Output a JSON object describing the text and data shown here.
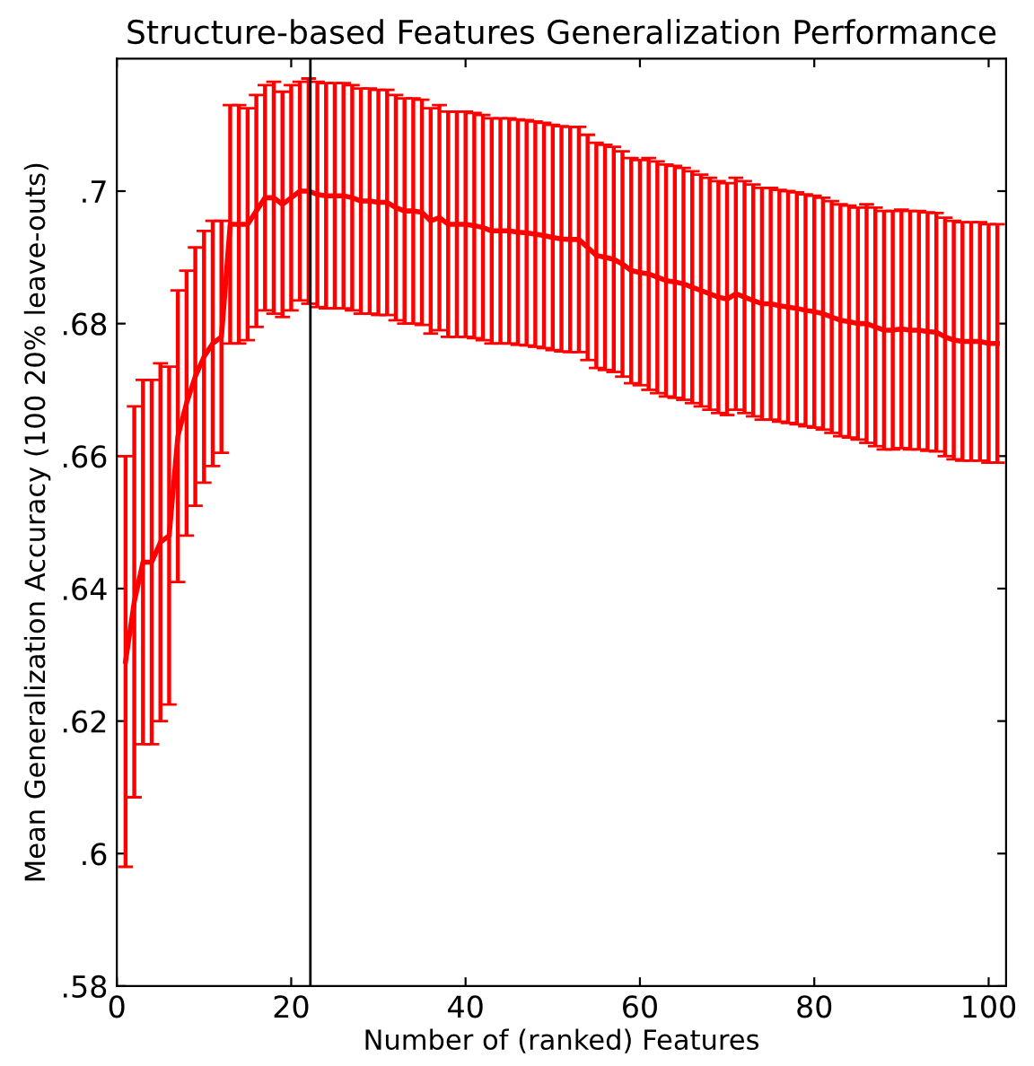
{
  "chart_data": {
    "type": "line",
    "title": "Structure-based Features Generalization Performance",
    "xlabel": "Number of (ranked) Features",
    "ylabel": "Mean Generalization Accuracy (100 20% leave-outs)",
    "xlim": [
      0,
      102
    ],
    "ylim": [
      0.58,
      0.72
    ],
    "xticks": [
      0,
      20,
      40,
      60,
      80,
      100
    ],
    "yticks": [
      {
        "value": 0.58,
        "label": ".58"
      },
      {
        "value": 0.6,
        "label": ".6"
      },
      {
        "value": 0.62,
        "label": ".62"
      },
      {
        "value": 0.64,
        "label": ".64"
      },
      {
        "value": 0.66,
        "label": ".66"
      },
      {
        "value": 0.68,
        "label": ".68"
      },
      {
        "value": 0.7,
        "label": ".7"
      }
    ],
    "grid": false,
    "marker": "none",
    "line_style": "solid",
    "ref_lines": [
      {
        "axis": "x",
        "value": 22.2,
        "label": null,
        "color": "#000000"
      }
    ],
    "series": [
      {
        "color": "#ff0000",
        "x": [
          1,
          2,
          3,
          4,
          5,
          6,
          7,
          8,
          9,
          10,
          11,
          12,
          13,
          14,
          15,
          16,
          17,
          18,
          19,
          20,
          21,
          22,
          23,
          24,
          25,
          26,
          27,
          28,
          29,
          30,
          31,
          32,
          33,
          34,
          35,
          36,
          37,
          38,
          39,
          40,
          41,
          42,
          43,
          44,
          45,
          46,
          47,
          48,
          49,
          50,
          51,
          52,
          53,
          54,
          55,
          56,
          57,
          58,
          59,
          60,
          61,
          62,
          63,
          64,
          65,
          66,
          67,
          68,
          69,
          70,
          71,
          72,
          73,
          74,
          75,
          76,
          77,
          78,
          79,
          80,
          81,
          82,
          83,
          84,
          85,
          86,
          87,
          88,
          89,
          90,
          91,
          92,
          93,
          94,
          95,
          96,
          97,
          98,
          99,
          100,
          101
        ],
        "values": [
          0.629,
          0.638,
          0.644,
          0.644,
          0.647,
          0.648,
          0.663,
          0.668,
          0.672,
          0.675,
          0.677,
          0.678,
          0.695,
          0.695,
          0.695,
          0.697,
          0.699,
          0.699,
          0.698,
          0.699,
          0.7,
          0.7,
          0.6995,
          0.6993,
          0.6993,
          0.6993,
          0.699,
          0.6985,
          0.6985,
          0.6983,
          0.6983,
          0.6975,
          0.697,
          0.697,
          0.6968,
          0.6955,
          0.696,
          0.695,
          0.695,
          0.695,
          0.6948,
          0.6945,
          0.694,
          0.694,
          0.694,
          0.6938,
          0.6937,
          0.6935,
          0.6933,
          0.693,
          0.6928,
          0.6927,
          0.6927,
          0.6915,
          0.6903,
          0.69,
          0.6897,
          0.689,
          0.688,
          0.6877,
          0.6875,
          0.687,
          0.6865,
          0.6863,
          0.686,
          0.6855,
          0.685,
          0.6845,
          0.684,
          0.6837,
          0.6845,
          0.684,
          0.6835,
          0.683,
          0.683,
          0.6827,
          0.6825,
          0.6823,
          0.682,
          0.6818,
          0.6815,
          0.681,
          0.6805,
          0.6803,
          0.68,
          0.68,
          0.6795,
          0.679,
          0.679,
          0.6792,
          0.679,
          0.679,
          0.6788,
          0.6787,
          0.678,
          0.6775,
          0.6773,
          0.6773,
          0.6773,
          0.677,
          0.677
        ],
        "errors": [
          0.031,
          0.0295,
          0.0275,
          0.0275,
          0.027,
          0.0255,
          0.022,
          0.02,
          0.0195,
          0.019,
          0.0185,
          0.0175,
          0.018,
          0.018,
          0.0175,
          0.0175,
          0.017,
          0.0175,
          0.017,
          0.017,
          0.0165,
          0.017,
          0.017,
          0.017,
          0.017,
          0.017,
          0.017,
          0.017,
          0.017,
          0.017,
          0.017,
          0.017,
          0.017,
          0.017,
          0.017,
          0.017,
          0.017,
          0.017,
          0.017,
          0.017,
          0.017,
          0.017,
          0.017,
          0.017,
          0.017,
          0.017,
          0.017,
          0.017,
          0.017,
          0.017,
          0.017,
          0.017,
          0.017,
          0.017,
          0.017,
          0.017,
          0.017,
          0.017,
          0.017,
          0.017,
          0.0175,
          0.0175,
          0.0175,
          0.0175,
          0.0175,
          0.0175,
          0.0175,
          0.0175,
          0.0175,
          0.0175,
          0.0175,
          0.0175,
          0.0175,
          0.0175,
          0.0175,
          0.0175,
          0.0175,
          0.0175,
          0.0175,
          0.0175,
          0.0175,
          0.0175,
          0.0175,
          0.0175,
          0.0175,
          0.018,
          0.018,
          0.018,
          0.018,
          0.018,
          0.018,
          0.018,
          0.018,
          0.018,
          0.018,
          0.018,
          0.018,
          0.018,
          0.018,
          0.018,
          0.018
        ]
      }
    ]
  }
}
